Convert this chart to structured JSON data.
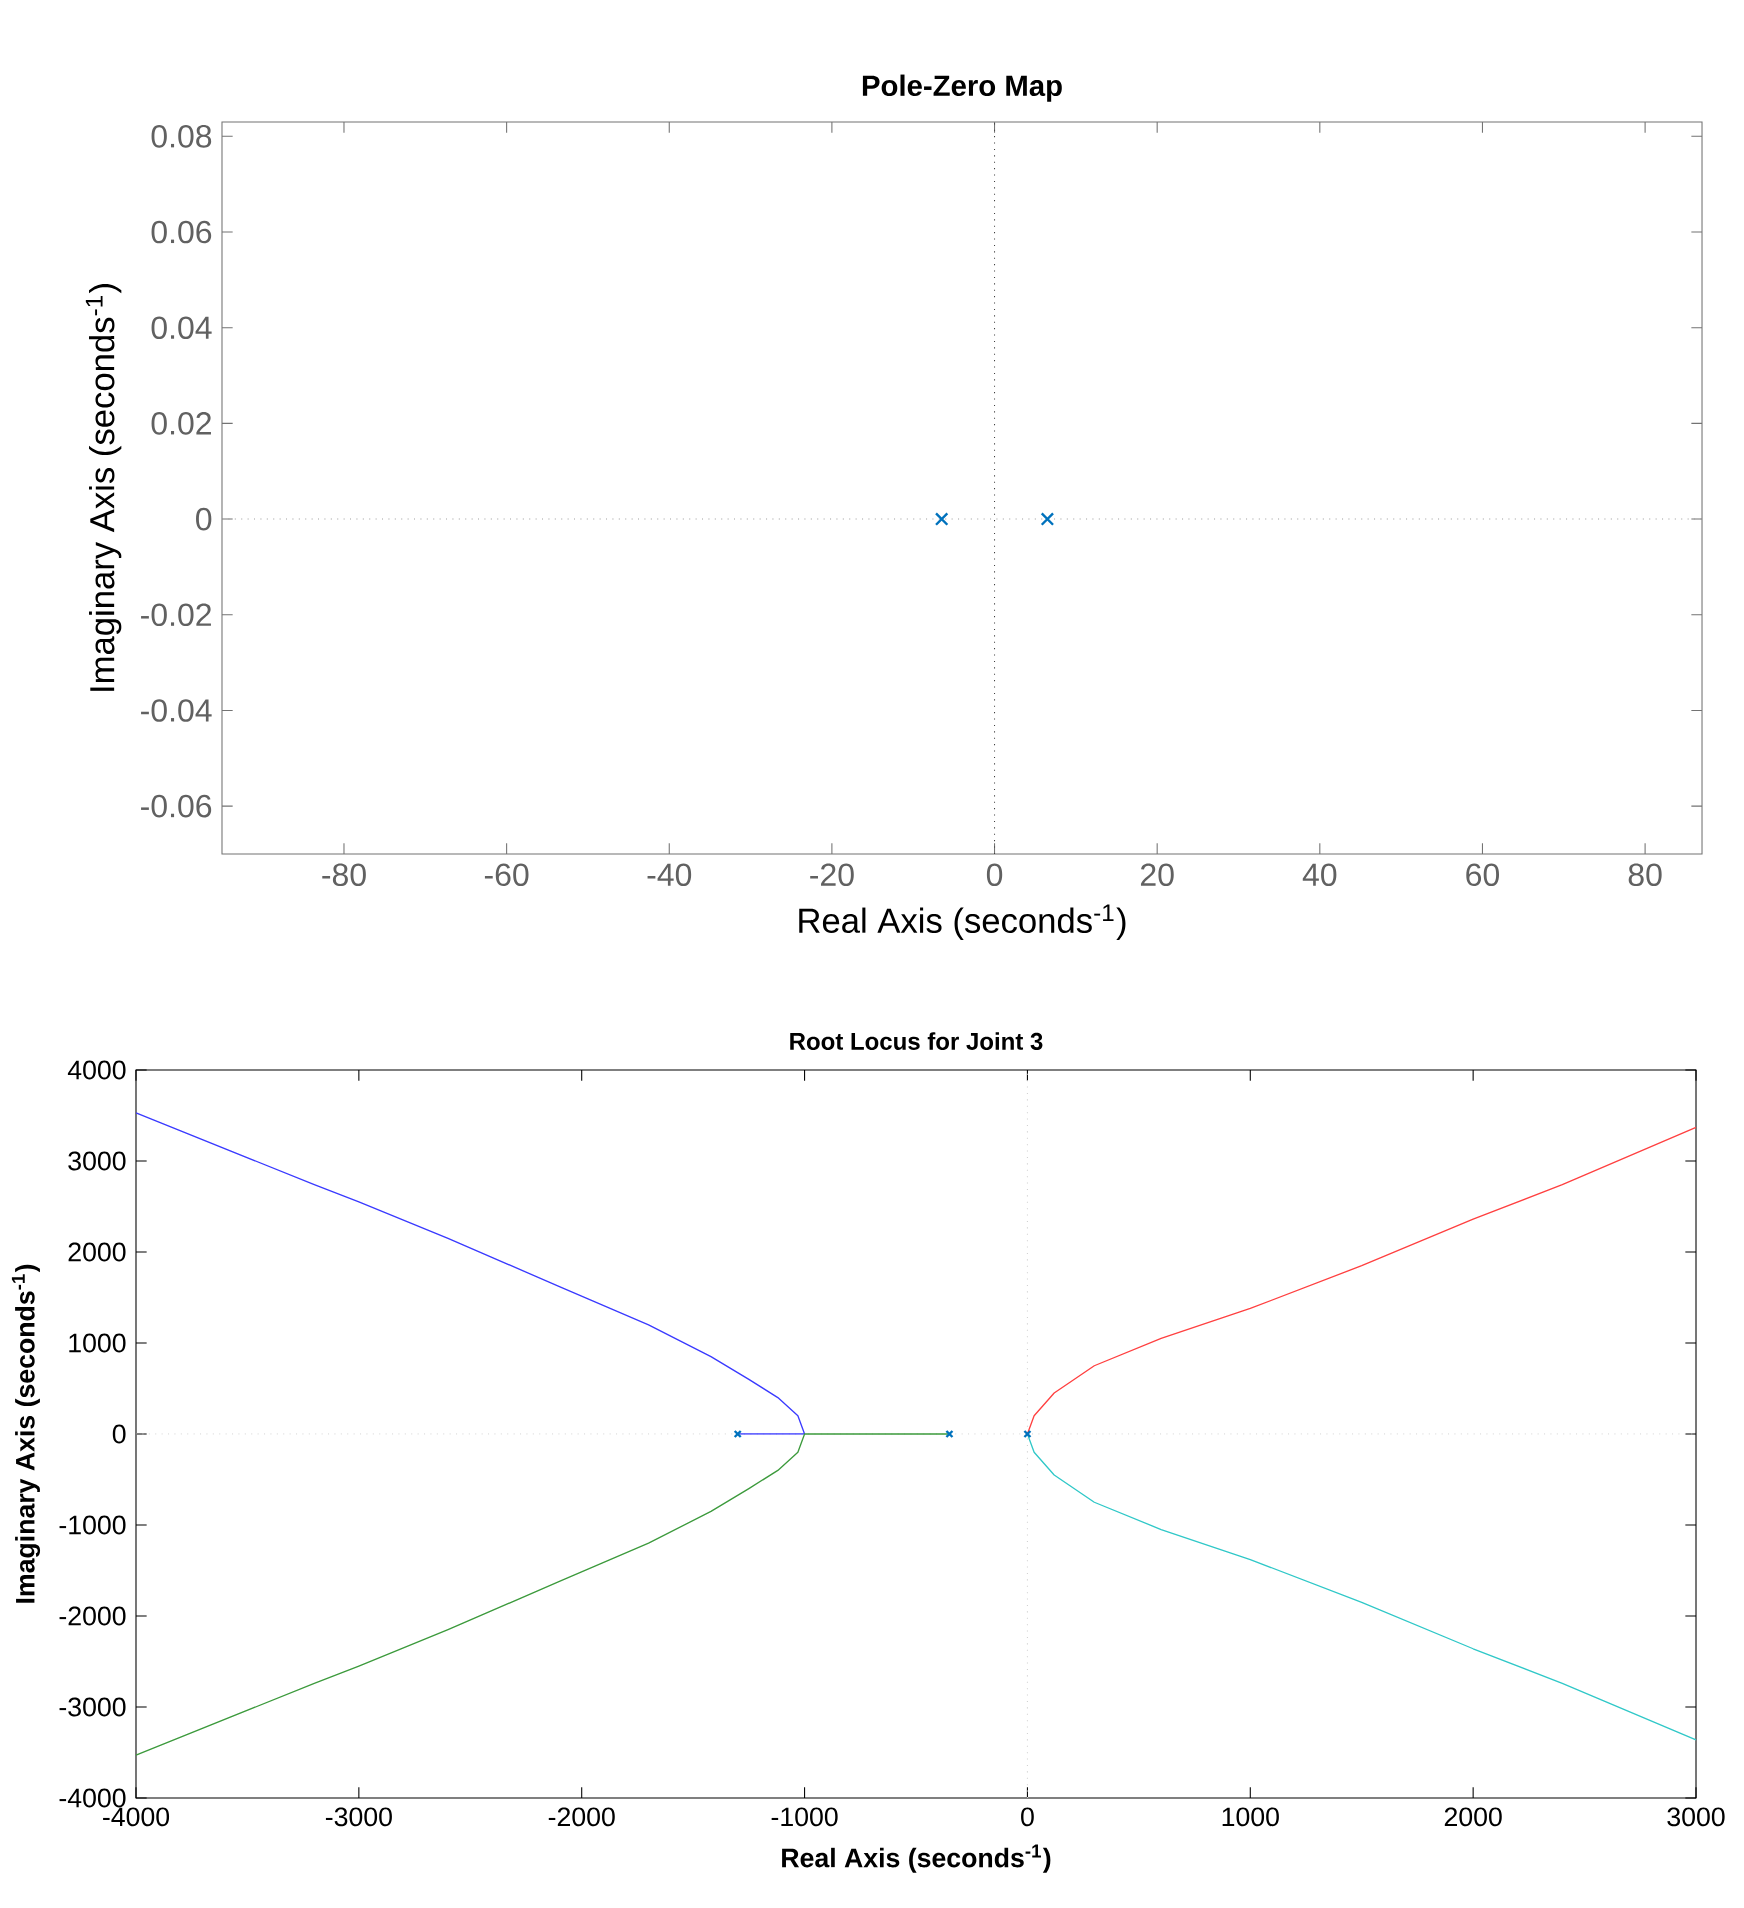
{
  "chart_data": [
    {
      "type": "scatter",
      "title": "Pole-Zero Map",
      "xlabel": "Real Axis (seconds$^{-1}$)",
      "ylabel": "Imaginary Axis (seconds$^{-1}$)",
      "xlim": [
        -95,
        87
      ],
      "ylim": [
        -0.07,
        0.083
      ],
      "xticks": [
        -80,
        -60,
        -40,
        -20,
        0,
        20,
        40,
        60,
        80
      ],
      "yticks": [
        -0.06,
        -0.04,
        -0.02,
        0,
        0.02,
        0.04,
        0.06,
        0.08
      ],
      "series": [
        {
          "marker": "cross",
          "color": "#0072bd",
          "x": [
            -6.5,
            6.5
          ],
          "values": [
            0,
            0
          ]
        }
      ],
      "ref_lines": [
        {
          "axis": "x",
          "value": 0,
          "color": "#404040",
          "line_style": "dotted"
        },
        {
          "axis": "y",
          "value": 0,
          "color": "#a0a0a0",
          "line_style": "dotted"
        }
      ]
    },
    {
      "type": "line",
      "title": "Root Locus for Joint 3",
      "xlabel": "Real Axis (seconds$^{-1}$)",
      "ylabel": "Imaginary Axis (seconds$^{-1}$)",
      "xlim": [
        -4000,
        3000
      ],
      "ylim": [
        -4000,
        4000
      ],
      "xticks": [
        -4000,
        -3000,
        -2000,
        -1000,
        0,
        1000,
        2000,
        3000
      ],
      "yticks": [
        -4000,
        -3000,
        -2000,
        -1000,
        0,
        1000,
        2000,
        3000,
        4000
      ],
      "series": [
        {
          "color": "#3a3aff",
          "x": [
            -1300,
            -1000,
            -1030,
            -1120,
            -1250,
            -1420,
            -1700,
            -2100,
            -2600,
            -3000,
            -3200,
            -4000
          ],
          "values": [
            0,
            0,
            200,
            400,
            600,
            850,
            1200,
            1620,
            2150,
            2550,
            2740,
            3530
          ]
        },
        {
          "color": "#3c9a3c",
          "x": [
            -350,
            -1000,
            -1030,
            -1120,
            -1250,
            -1420,
            -1700,
            -2100,
            -2600,
            -3000,
            -3200,
            -4000
          ],
          "values": [
            0,
            0,
            -200,
            -400,
            -600,
            -850,
            -1200,
            -1620,
            -2150,
            -2550,
            -2740,
            -3530
          ]
        },
        {
          "color": "#ff4040",
          "x": [
            0,
            30,
            120,
            300,
            600,
            1000,
            1500,
            2000,
            2400,
            3000
          ],
          "values": [
            0,
            200,
            450,
            750,
            1050,
            1380,
            1850,
            2360,
            2740,
            3370
          ]
        },
        {
          "color": "#30c8c8",
          "x": [
            0,
            30,
            120,
            300,
            600,
            1000,
            1500,
            2000,
            2400,
            3000
          ],
          "values": [
            0,
            -200,
            -450,
            -750,
            -1050,
            -1380,
            -1850,
            -2360,
            -2740,
            -3360
          ]
        },
        {
          "type": "scatter",
          "marker": "cross",
          "color": "#0072bd",
          "x": [
            -1300,
            -350,
            0
          ],
          "values": [
            0,
            0,
            0
          ]
        }
      ],
      "ref_lines": [
        {
          "axis": "x",
          "value": 0,
          "color": "#d0d0d0",
          "line_style": "dotted"
        },
        {
          "axis": "y",
          "value": 0,
          "color": "#d0d0d0",
          "line_style": "dotted"
        }
      ]
    }
  ]
}
